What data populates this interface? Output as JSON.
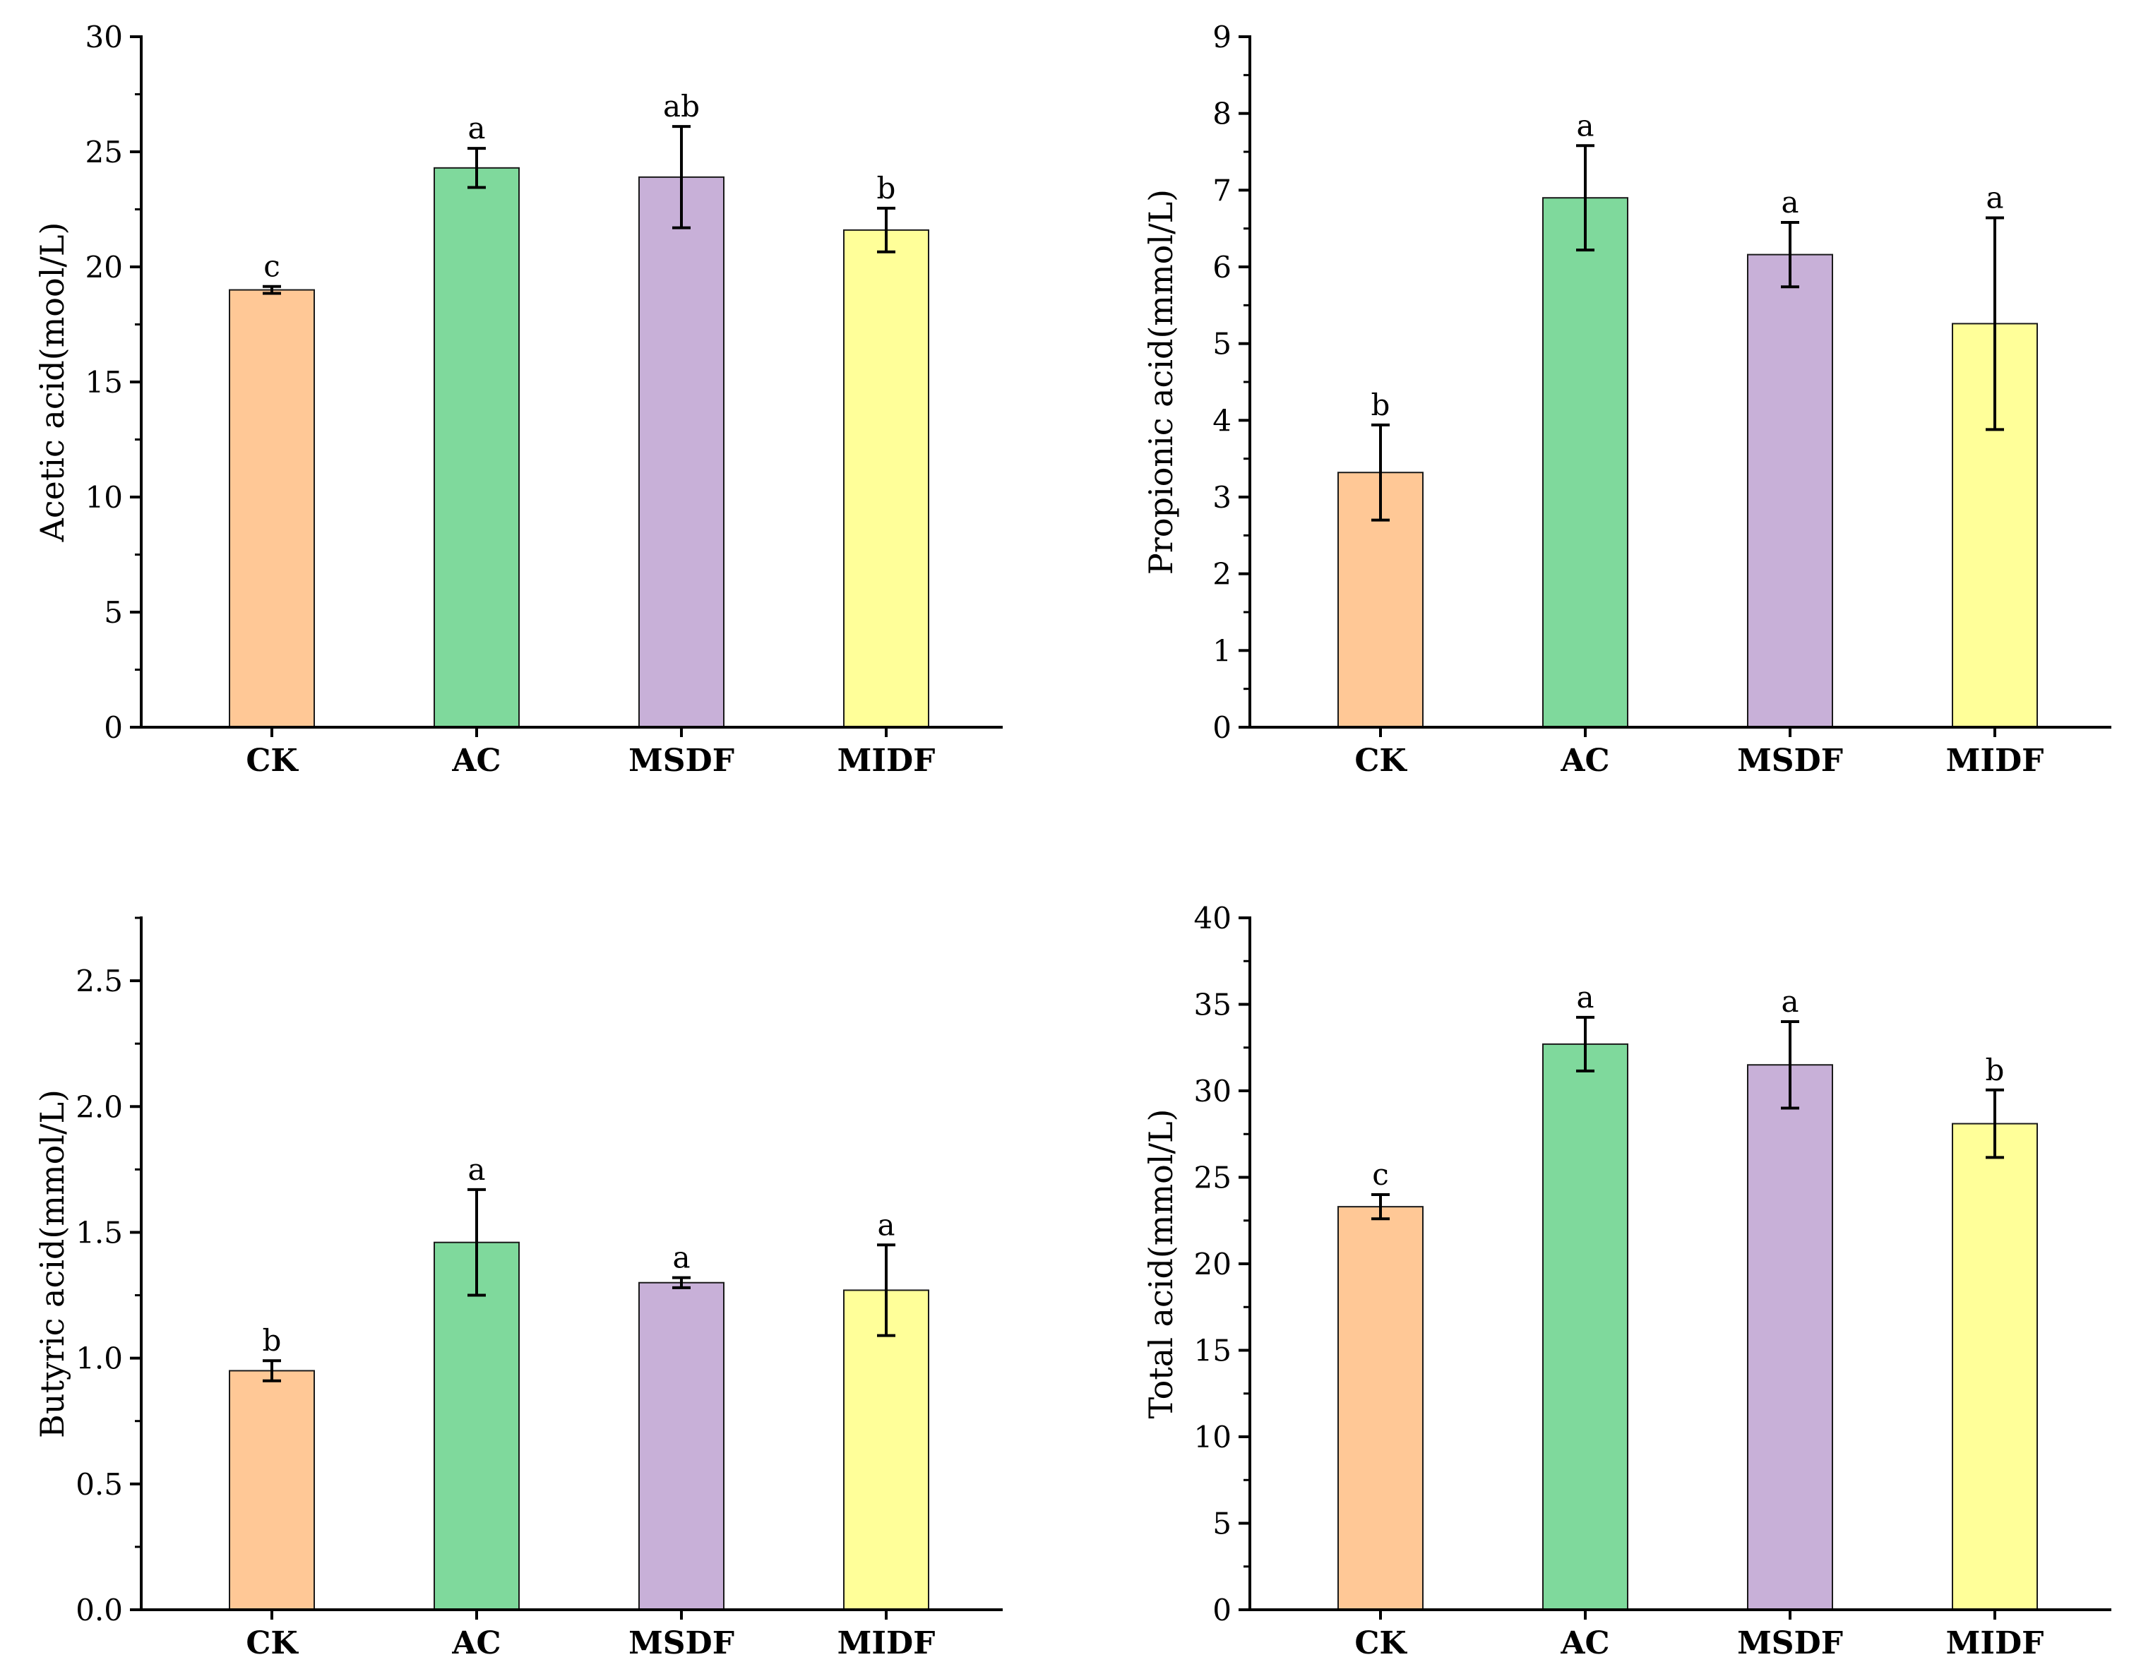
{
  "chart_data": [
    {
      "type": "bar",
      "categories": [
        "CK",
        "AC",
        "MSDF",
        "MIDF"
      ],
      "values": [
        19.0,
        24.3,
        23.9,
        21.6
      ],
      "errors": [
        0.15,
        0.85,
        2.2,
        0.95
      ],
      "significance": [
        "c",
        "a",
        "ab",
        "b"
      ],
      "ylabel": "Acetic acid(mool/L)",
      "ylim": [
        0,
        30
      ],
      "yticks": [
        "0",
        "5",
        "10",
        "15",
        "20",
        "25",
        "30"
      ],
      "colors": [
        "#FFC896",
        "#7FD99C",
        "#C8B0D8",
        "#FFFF99"
      ]
    },
    {
      "type": "bar",
      "categories": [
        "CK",
        "AC",
        "MSDF",
        "MIDF"
      ],
      "values": [
        3.32,
        6.9,
        6.16,
        5.26
      ],
      "errors": [
        0.62,
        0.68,
        0.42,
        1.38
      ],
      "significance": [
        "b",
        "a",
        "a",
        "a"
      ],
      "ylabel": "Propionic acid(mmol/L)",
      "ylim": [
        0,
        9
      ],
      "yticks": [
        "0",
        "1",
        "2",
        "3",
        "4",
        "5",
        "6",
        "7",
        "8",
        "9"
      ],
      "colors": [
        "#FFC896",
        "#7FD99C",
        "#C8B0D8",
        "#FFFF99"
      ]
    },
    {
      "type": "bar",
      "categories": [
        "CK",
        "AC",
        "MSDF",
        "MIDF"
      ],
      "values": [
        0.95,
        1.46,
        1.3,
        1.27
      ],
      "errors": [
        0.04,
        0.21,
        0.02,
        0.18
      ],
      "significance": [
        "b",
        "a",
        "a",
        "a"
      ],
      "ylabel": "Butyric acid(mmol/L)",
      "ylim": [
        0,
        2.75
      ],
      "yticks": [
        "0.0",
        "0.5",
        "1.0",
        "1.5",
        "2.0",
        "2.5"
      ],
      "colors": [
        "#FFC896",
        "#7FD99C",
        "#C8B0D8",
        "#FFFF99"
      ]
    },
    {
      "type": "bar",
      "categories": [
        "CK",
        "AC",
        "MSDF",
        "MIDF"
      ],
      "values": [
        23.3,
        32.7,
        31.5,
        28.1
      ],
      "errors": [
        0.7,
        1.55,
        2.5,
        1.95
      ],
      "significance": [
        "c",
        "a",
        "a",
        "b"
      ],
      "ylabel": "Total acid(mmol/L)",
      "ylim": [
        0,
        40
      ],
      "yticks": [
        "0",
        "5",
        "10",
        "15",
        "20",
        "25",
        "30",
        "35",
        "40"
      ],
      "colors": [
        "#FFC896",
        "#7FD99C",
        "#C8B0D8",
        "#FFFF99"
      ]
    }
  ]
}
